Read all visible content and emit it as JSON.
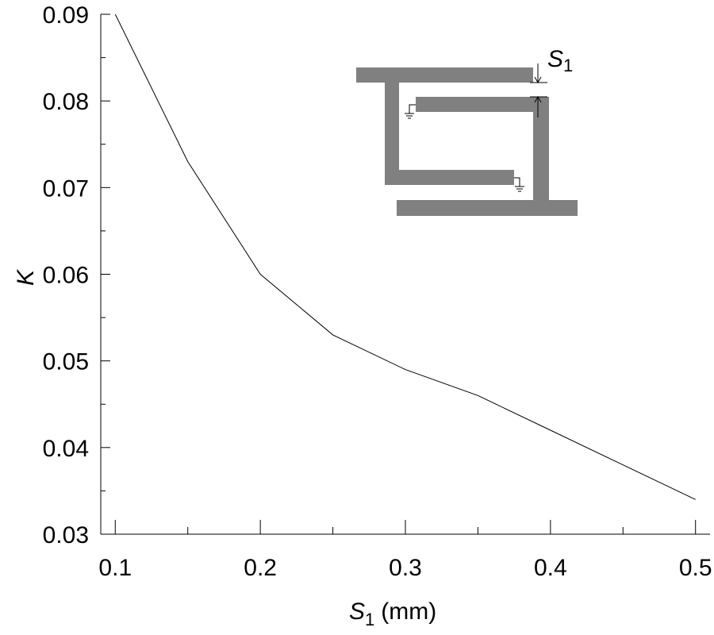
{
  "chart_data": {
    "type": "line",
    "x": [
      0.1,
      0.15,
      0.2,
      0.25,
      0.3,
      0.35,
      0.4,
      0.45,
      0.5
    ],
    "series": [
      {
        "color": "#000000",
        "values": [
          0.09,
          0.073,
          0.06,
          0.053,
          0.049,
          0.046,
          0.042,
          0.038,
          0.034
        ]
      }
    ],
    "xlim": [
      0.09,
      0.51
    ],
    "ylim": [
      0.03,
      0.09
    ],
    "xticks": [
      0.1,
      0.2,
      0.3,
      0.4,
      0.5
    ],
    "yticks": [
      0.03,
      0.04,
      0.05,
      0.06,
      0.07,
      0.08,
      0.09
    ],
    "x_minor_ticks": [
      0.15,
      0.25,
      0.35,
      0.45
    ],
    "y_minor_ticks": [
      0.035,
      0.045,
      0.055,
      0.065,
      0.075,
      0.085
    ],
    "xlabel": {
      "symbol": "S",
      "subscript": "1",
      "unit": "(mm)"
    },
    "ylabel": "K",
    "inset_label": {
      "symbol": "S",
      "subscript": "1"
    },
    "grid": false
  }
}
